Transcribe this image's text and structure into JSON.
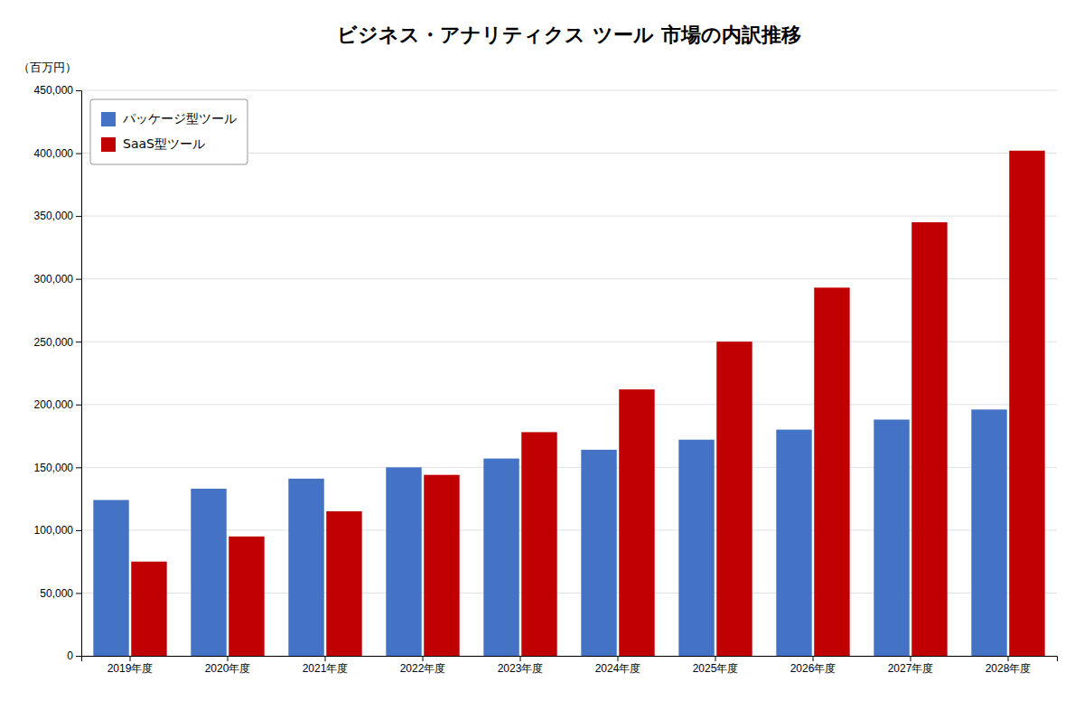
{
  "chart_data": {
    "type": "bar",
    "title": "ビジネス・アナリティクス ツール 市場の内訳推移",
    "ylabel": "（百万円）",
    "categories": [
      "2019年度",
      "2020年度",
      "2021年度",
      "2022年度",
      "2023年度",
      "2024年度",
      "2025年度",
      "2026年度",
      "2027年度",
      "2028年度"
    ],
    "series": [
      {
        "name": "パッケージ型ツール",
        "color": "#4472C4",
        "values": [
          124000,
          133000,
          141000,
          150000,
          157000,
          164000,
          172000,
          180000,
          188000,
          196000
        ]
      },
      {
        "name": "SaaS型ツール",
        "color": "#C00000",
        "values": [
          75000,
          95000,
          115000,
          144000,
          178000,
          212000,
          250000,
          293000,
          345000,
          402000
        ]
      }
    ],
    "ylim": [
      0,
      450000
    ],
    "yticks": [
      0,
      {
        "value": 50000,
        "label": "50,000"
      },
      {
        "value": 100000,
        "label": "100,000"
      },
      {
        "value": 150000,
        "label": "150,000"
      },
      {
        "value": 200000,
        "label": "200,000"
      },
      {
        "value": 250000,
        "label": "250,000"
      },
      {
        "value": 300000,
        "label": "300,000"
      },
      {
        "value": 350000,
        "label": "350,000"
      },
      {
        "value": 400000,
        "label": "400,000"
      },
      {
        "value": 450000,
        "label": "450,000"
      }
    ],
    "grid": true,
    "legend": "upper left"
  }
}
